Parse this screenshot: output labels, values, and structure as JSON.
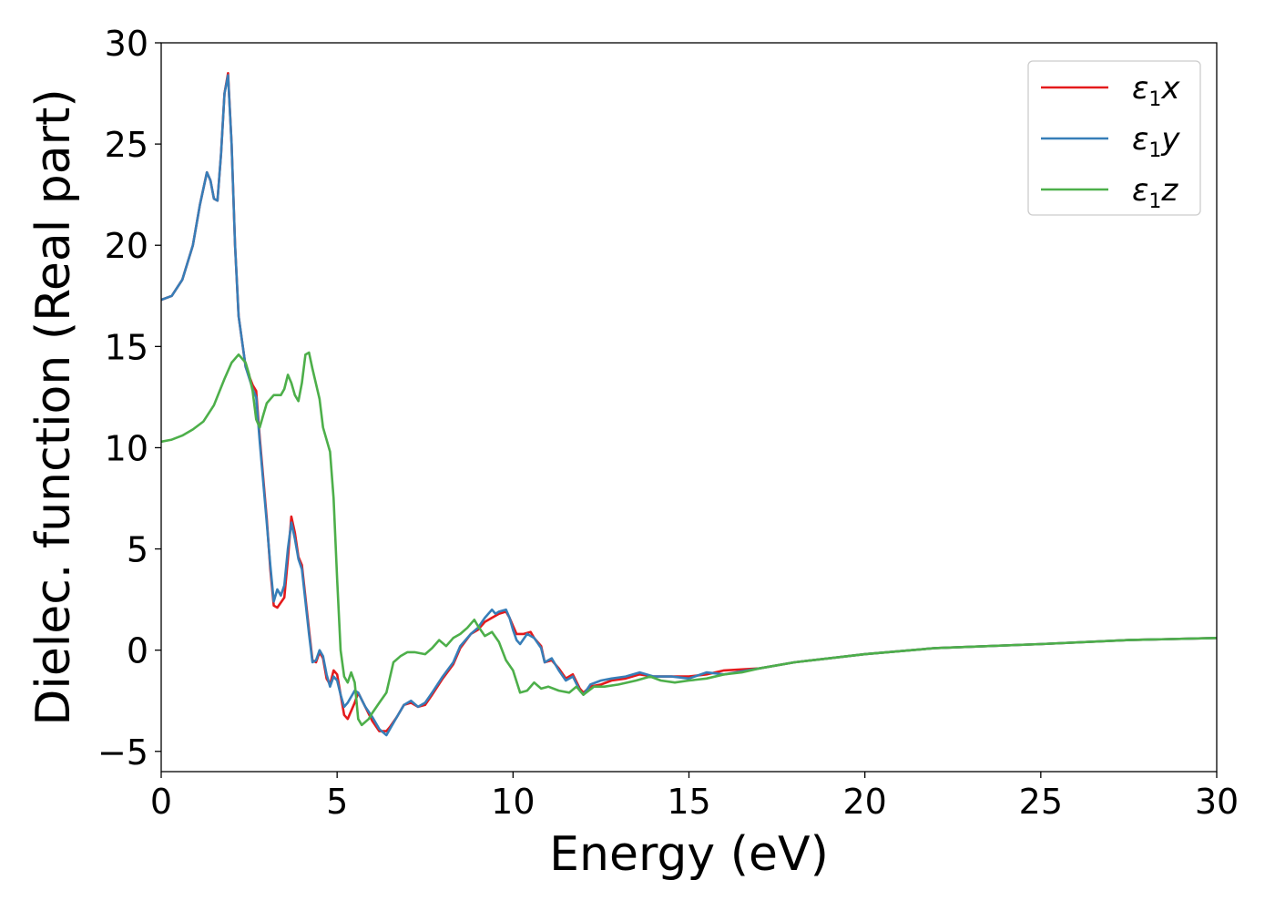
{
  "chart_data": {
    "type": "line",
    "title": "",
    "xlabel": "Energy (eV)",
    "ylabel": "Dielec. function (Real part)",
    "xlim": [
      0,
      30
    ],
    "ylim": [
      -6,
      30
    ],
    "xticks": [
      0,
      5,
      10,
      15,
      20,
      25,
      30
    ],
    "xtick_labels": [
      "0",
      "5",
      "10",
      "15",
      "20",
      "25",
      "30"
    ],
    "yticks": [
      -5,
      0,
      5,
      10,
      15,
      20,
      25,
      30
    ],
    "ytick_labels": [
      "−5",
      "0",
      "5",
      "10",
      "15",
      "20",
      "25",
      "30"
    ],
    "grid": false,
    "legend_position": "top-right",
    "series": [
      {
        "name": "ε₁x",
        "legend_main": "ε",
        "legend_sub": "1",
        "legend_var": "x",
        "color": "#e41a1c",
        "points": [
          [
            0,
            17.3
          ],
          [
            0.3,
            17.5
          ],
          [
            0.6,
            18.3
          ],
          [
            0.9,
            20.0
          ],
          [
            1.1,
            22.0
          ],
          [
            1.3,
            23.6
          ],
          [
            1.4,
            23.2
          ],
          [
            1.5,
            22.3
          ],
          [
            1.6,
            22.2
          ],
          [
            1.7,
            24.5
          ],
          [
            1.8,
            27.5
          ],
          [
            1.9,
            28.5
          ],
          [
            2.0,
            25.0
          ],
          [
            2.1,
            20.0
          ],
          [
            2.2,
            16.5
          ],
          [
            2.4,
            14.0
          ],
          [
            2.6,
            13.1
          ],
          [
            2.7,
            12.8
          ],
          [
            2.8,
            10.5
          ],
          [
            3.0,
            6.5
          ],
          [
            3.1,
            4.0
          ],
          [
            3.2,
            2.2
          ],
          [
            3.3,
            2.1
          ],
          [
            3.5,
            2.6
          ],
          [
            3.6,
            4.5
          ],
          [
            3.7,
            6.6
          ],
          [
            3.8,
            5.8
          ],
          [
            3.9,
            4.6
          ],
          [
            4.0,
            4.2
          ],
          [
            4.1,
            2.6
          ],
          [
            4.2,
            1.0
          ],
          [
            4.3,
            -0.5
          ],
          [
            4.4,
            -0.6
          ],
          [
            4.5,
            -0.1
          ],
          [
            4.6,
            -0.4
          ],
          [
            4.7,
            -1.4
          ],
          [
            4.8,
            -1.7
          ],
          [
            4.9,
            -1.0
          ],
          [
            5.0,
            -1.2
          ],
          [
            5.1,
            -2.2
          ],
          [
            5.2,
            -3.2
          ],
          [
            5.3,
            -3.4
          ],
          [
            5.5,
            -2.6
          ],
          [
            5.6,
            -2.1
          ],
          [
            5.8,
            -2.8
          ],
          [
            6.0,
            -3.5
          ],
          [
            6.2,
            -4.0
          ],
          [
            6.4,
            -4.0
          ],
          [
            6.5,
            -3.8
          ],
          [
            6.7,
            -3.3
          ],
          [
            6.9,
            -2.7
          ],
          [
            7.1,
            -2.6
          ],
          [
            7.3,
            -2.8
          ],
          [
            7.5,
            -2.7
          ],
          [
            7.7,
            -2.2
          ],
          [
            8.0,
            -1.4
          ],
          [
            8.3,
            -0.7
          ],
          [
            8.5,
            0.1
          ],
          [
            8.8,
            0.8
          ],
          [
            9.0,
            1.0
          ],
          [
            9.2,
            1.4
          ],
          [
            9.4,
            1.6
          ],
          [
            9.6,
            1.8
          ],
          [
            9.8,
            1.9
          ],
          [
            9.9,
            1.6
          ],
          [
            10.0,
            1.2
          ],
          [
            10.1,
            0.8
          ],
          [
            10.3,
            0.8
          ],
          [
            10.5,
            0.9
          ],
          [
            10.6,
            0.6
          ],
          [
            10.8,
            0.2
          ],
          [
            10.9,
            -0.6
          ],
          [
            11.1,
            -0.5
          ],
          [
            11.3,
            -0.9
          ],
          [
            11.5,
            -1.4
          ],
          [
            11.7,
            -1.2
          ],
          [
            11.9,
            -1.9
          ],
          [
            12.0,
            -2.1
          ],
          [
            12.2,
            -1.8
          ],
          [
            12.5,
            -1.7
          ],
          [
            12.8,
            -1.5
          ],
          [
            13.2,
            -1.4
          ],
          [
            13.6,
            -1.2
          ],
          [
            14.0,
            -1.3
          ],
          [
            14.5,
            -1.3
          ],
          [
            15.0,
            -1.3
          ],
          [
            15.5,
            -1.2
          ],
          [
            16.0,
            -1.0
          ],
          [
            17.0,
            -0.9
          ],
          [
            18.0,
            -0.6
          ],
          [
            19.0,
            -0.4
          ],
          [
            20.0,
            -0.2
          ],
          [
            22.0,
            0.1
          ],
          [
            25.0,
            0.3
          ],
          [
            27.5,
            0.5
          ],
          [
            30.0,
            0.6
          ]
        ]
      },
      {
        "name": "ε₁y",
        "legend_main": "ε",
        "legend_sub": "1",
        "legend_var": "y",
        "color": "#377eb8",
        "points": [
          [
            0,
            17.3
          ],
          [
            0.3,
            17.5
          ],
          [
            0.6,
            18.3
          ],
          [
            0.9,
            20.0
          ],
          [
            1.1,
            22.0
          ],
          [
            1.3,
            23.6
          ],
          [
            1.4,
            23.2
          ],
          [
            1.5,
            22.3
          ],
          [
            1.6,
            22.2
          ],
          [
            1.7,
            24.5
          ],
          [
            1.8,
            27.5
          ],
          [
            1.9,
            28.4
          ],
          [
            2.0,
            25.0
          ],
          [
            2.1,
            20.0
          ],
          [
            2.2,
            16.5
          ],
          [
            2.4,
            14.0
          ],
          [
            2.6,
            12.9
          ],
          [
            2.7,
            12.5
          ],
          [
            2.8,
            10.3
          ],
          [
            3.0,
            6.3
          ],
          [
            3.1,
            4.2
          ],
          [
            3.2,
            2.4
          ],
          [
            3.3,
            3.0
          ],
          [
            3.4,
            2.7
          ],
          [
            3.5,
            3.2
          ],
          [
            3.6,
            5.0
          ],
          [
            3.7,
            6.3
          ],
          [
            3.8,
            5.5
          ],
          [
            3.9,
            4.5
          ],
          [
            4.0,
            4.0
          ],
          [
            4.1,
            2.4
          ],
          [
            4.2,
            0.8
          ],
          [
            4.3,
            -0.6
          ],
          [
            4.4,
            -0.5
          ],
          [
            4.5,
            0.0
          ],
          [
            4.6,
            -0.3
          ],
          [
            4.7,
            -1.2
          ],
          [
            4.8,
            -1.8
          ],
          [
            4.9,
            -1.3
          ],
          [
            5.0,
            -1.5
          ],
          [
            5.1,
            -2.2
          ],
          [
            5.2,
            -2.8
          ],
          [
            5.3,
            -2.6
          ],
          [
            5.5,
            -2.0
          ],
          [
            5.6,
            -2.1
          ],
          [
            5.8,
            -2.8
          ],
          [
            6.0,
            -3.3
          ],
          [
            6.2,
            -3.9
          ],
          [
            6.4,
            -4.2
          ],
          [
            6.5,
            -3.9
          ],
          [
            6.7,
            -3.3
          ],
          [
            6.9,
            -2.7
          ],
          [
            7.1,
            -2.5
          ],
          [
            7.3,
            -2.8
          ],
          [
            7.5,
            -2.6
          ],
          [
            7.7,
            -2.1
          ],
          [
            8.0,
            -1.3
          ],
          [
            8.3,
            -0.6
          ],
          [
            8.5,
            0.2
          ],
          [
            8.8,
            0.8
          ],
          [
            9.0,
            1.1
          ],
          [
            9.2,
            1.6
          ],
          [
            9.4,
            2.0
          ],
          [
            9.5,
            1.8
          ],
          [
            9.6,
            1.9
          ],
          [
            9.8,
            2.0
          ],
          [
            9.9,
            1.6
          ],
          [
            10.0,
            1.0
          ],
          [
            10.1,
            0.5
          ],
          [
            10.2,
            0.3
          ],
          [
            10.4,
            0.8
          ],
          [
            10.6,
            0.6
          ],
          [
            10.8,
            0.1
          ],
          [
            10.9,
            -0.6
          ],
          [
            11.1,
            -0.4
          ],
          [
            11.3,
            -1.0
          ],
          [
            11.5,
            -1.5
          ],
          [
            11.7,
            -1.3
          ],
          [
            11.9,
            -2.0
          ],
          [
            12.0,
            -2.2
          ],
          [
            12.2,
            -1.7
          ],
          [
            12.5,
            -1.5
          ],
          [
            12.8,
            -1.4
          ],
          [
            13.2,
            -1.3
          ],
          [
            13.6,
            -1.1
          ],
          [
            14.0,
            -1.3
          ],
          [
            14.5,
            -1.3
          ],
          [
            15.0,
            -1.4
          ],
          [
            15.5,
            -1.1
          ],
          [
            16.0,
            -1.2
          ],
          [
            17.0,
            -0.9
          ],
          [
            18.0,
            -0.6
          ],
          [
            19.0,
            -0.4
          ],
          [
            20.0,
            -0.2
          ],
          [
            22.0,
            0.1
          ],
          [
            25.0,
            0.3
          ],
          [
            27.5,
            0.5
          ],
          [
            30.0,
            0.6
          ]
        ]
      },
      {
        "name": "ε₁z",
        "legend_main": "ε",
        "legend_sub": "1",
        "legend_var": "z",
        "color": "#4daf4a",
        "points": [
          [
            0,
            10.3
          ],
          [
            0.3,
            10.4
          ],
          [
            0.6,
            10.6
          ],
          [
            0.9,
            10.9
          ],
          [
            1.2,
            11.3
          ],
          [
            1.5,
            12.1
          ],
          [
            1.8,
            13.4
          ],
          [
            2.0,
            14.2
          ],
          [
            2.2,
            14.6
          ],
          [
            2.4,
            14.2
          ],
          [
            2.5,
            13.6
          ],
          [
            2.6,
            12.8
          ],
          [
            2.7,
            11.4
          ],
          [
            2.8,
            11.0
          ],
          [
            2.9,
            11.6
          ],
          [
            3.0,
            12.2
          ],
          [
            3.2,
            12.6
          ],
          [
            3.4,
            12.6
          ],
          [
            3.5,
            12.9
          ],
          [
            3.6,
            13.6
          ],
          [
            3.7,
            13.2
          ],
          [
            3.8,
            12.6
          ],
          [
            3.9,
            12.3
          ],
          [
            4.0,
            13.2
          ],
          [
            4.1,
            14.6
          ],
          [
            4.2,
            14.7
          ],
          [
            4.3,
            13.9
          ],
          [
            4.5,
            12.4
          ],
          [
            4.6,
            11.0
          ],
          [
            4.8,
            9.8
          ],
          [
            4.9,
            7.5
          ],
          [
            5.0,
            3.5
          ],
          [
            5.1,
            0.0
          ],
          [
            5.2,
            -1.3
          ],
          [
            5.3,
            -1.6
          ],
          [
            5.4,
            -1.1
          ],
          [
            5.5,
            -1.6
          ],
          [
            5.6,
            -3.4
          ],
          [
            5.7,
            -3.7
          ],
          [
            5.9,
            -3.4
          ],
          [
            6.0,
            -3.1
          ],
          [
            6.2,
            -2.6
          ],
          [
            6.4,
            -2.1
          ],
          [
            6.6,
            -0.6
          ],
          [
            6.8,
            -0.3
          ],
          [
            7.0,
            -0.1
          ],
          [
            7.2,
            -0.1
          ],
          [
            7.5,
            -0.2
          ],
          [
            7.7,
            0.1
          ],
          [
            7.9,
            0.5
          ],
          [
            8.1,
            0.2
          ],
          [
            8.3,
            0.6
          ],
          [
            8.5,
            0.8
          ],
          [
            8.7,
            1.1
          ],
          [
            8.9,
            1.5
          ],
          [
            9.0,
            1.2
          ],
          [
            9.2,
            0.7
          ],
          [
            9.4,
            0.9
          ],
          [
            9.6,
            0.4
          ],
          [
            9.8,
            -0.5
          ],
          [
            10.0,
            -1.0
          ],
          [
            10.2,
            -2.1
          ],
          [
            10.4,
            -2.0
          ],
          [
            10.6,
            -1.6
          ],
          [
            10.8,
            -1.9
          ],
          [
            11.0,
            -1.8
          ],
          [
            11.3,
            -2.0
          ],
          [
            11.6,
            -2.1
          ],
          [
            11.8,
            -1.8
          ],
          [
            12.0,
            -2.2
          ],
          [
            12.3,
            -1.8
          ],
          [
            12.6,
            -1.8
          ],
          [
            13.0,
            -1.7
          ],
          [
            13.5,
            -1.5
          ],
          [
            13.9,
            -1.3
          ],
          [
            14.2,
            -1.5
          ],
          [
            14.6,
            -1.6
          ],
          [
            15.0,
            -1.5
          ],
          [
            15.5,
            -1.4
          ],
          [
            16.0,
            -1.2
          ],
          [
            16.5,
            -1.1
          ],
          [
            17.0,
            -0.9
          ],
          [
            18.0,
            -0.6
          ],
          [
            19.0,
            -0.4
          ],
          [
            20.0,
            -0.2
          ],
          [
            22.0,
            0.1
          ],
          [
            25.0,
            0.3
          ],
          [
            27.5,
            0.5
          ],
          [
            30.0,
            0.6
          ]
        ]
      }
    ]
  }
}
